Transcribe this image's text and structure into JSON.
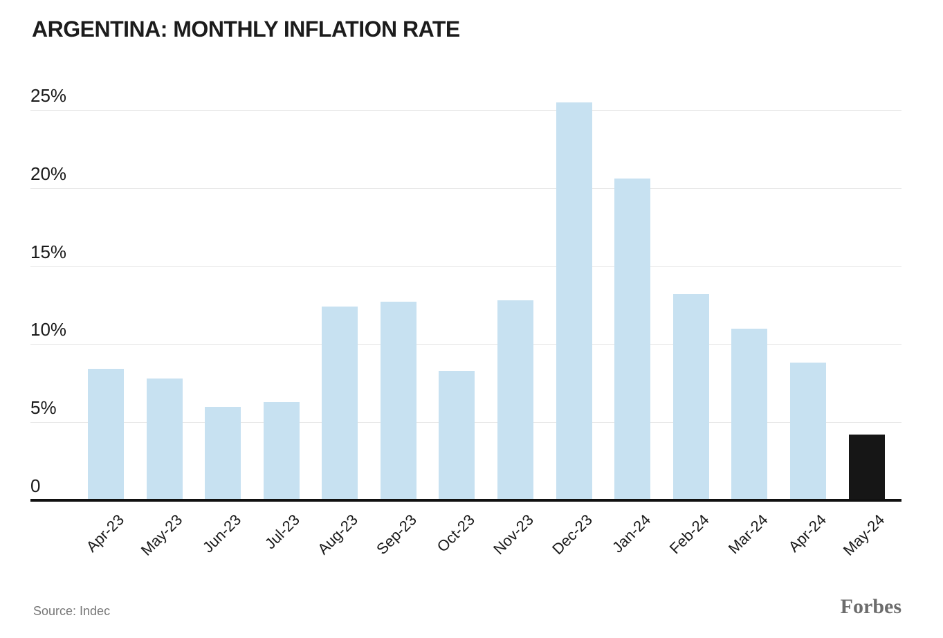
{
  "title": "ARGENTINA: MONTHLY INFLATION RATE",
  "source_note": "Source: Indec",
  "brand": "Forbes",
  "colors": {
    "bar": "#c7e1f1",
    "highlight_bar": "#161616",
    "gridline": "#e7e7e7",
    "axis_line": "#111111",
    "title_text": "#1c1c1c",
    "tick_text": "#1a1a1a",
    "source_text": "#767676",
    "brand_text": "#6c6c6c"
  },
  "chart_data": {
    "type": "bar",
    "title": "ARGENTINA: MONTHLY INFLATION RATE",
    "categories": [
      "Apr-23",
      "May-23",
      "Jun-23",
      "Jul-23",
      "Aug-23",
      "Sep-23",
      "Oct-23",
      "Nov-23",
      "Dec-23",
      "Jan-24",
      "Feb-24",
      "Mar-24",
      "Apr-24",
      "May-24"
    ],
    "values": [
      8.4,
      7.8,
      6.0,
      6.3,
      12.4,
      12.7,
      8.3,
      12.8,
      25.5,
      20.6,
      13.2,
      11.0,
      8.8,
      4.2
    ],
    "xlabel": "",
    "ylabel": "",
    "ylim": [
      0,
      25.8
    ],
    "yticks": [
      0,
      5,
      10,
      15,
      20,
      25
    ],
    "ytick_labels": [
      "0",
      "5%",
      "10%",
      "15%",
      "20%",
      "25%"
    ],
    "grid": true,
    "legend": "none",
    "highlight_index": 13,
    "highlight_label": "May-24"
  }
}
